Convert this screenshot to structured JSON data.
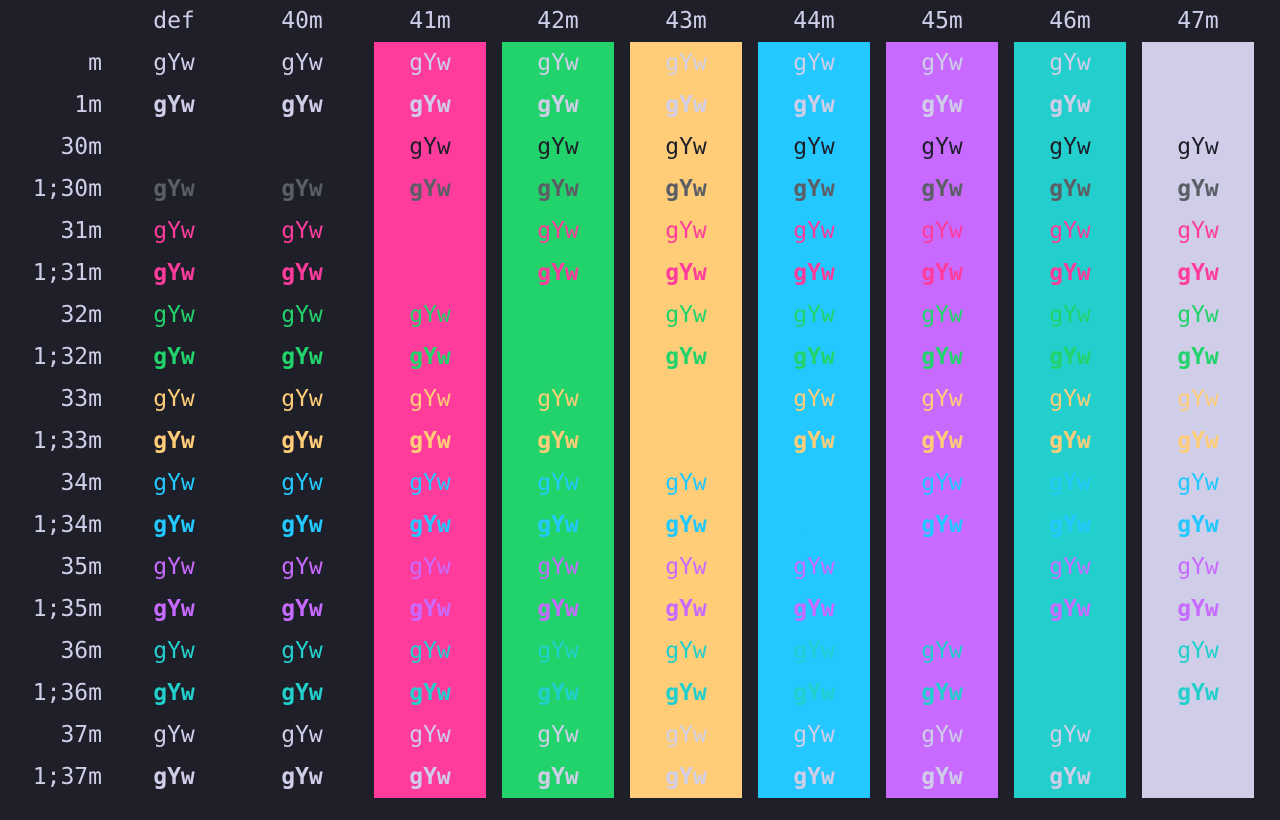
{
  "sample_text": "gYw",
  "colors": {
    "background": "#1e1f29",
    "foreground": "#cfcde8",
    "black": "#1e1f29",
    "bold_black": "#5c5e66",
    "red": "#ff3c9b",
    "green": "#22d36b",
    "yellow": "#ffcd78",
    "blue": "#22c8ff",
    "magenta": "#c86aff",
    "cyan": "#22cfcc",
    "white": "#cfcde8"
  },
  "columns": [
    {
      "label": "def",
      "bg": null
    },
    {
      "label": "40m",
      "bg": null
    },
    {
      "label": "41m",
      "bg": "red"
    },
    {
      "label": "42m",
      "bg": "green"
    },
    {
      "label": "43m",
      "bg": "yellow"
    },
    {
      "label": "44m",
      "bg": "blue"
    },
    {
      "label": "45m",
      "bg": "magenta"
    },
    {
      "label": "46m",
      "bg": "cyan"
    },
    {
      "label": "47m",
      "bg": "white"
    }
  ],
  "rows": [
    {
      "label": "m",
      "fg": "white",
      "bold": false,
      "default_row": true
    },
    {
      "label": "1m",
      "fg": "white",
      "bold": true,
      "default_row": true
    },
    {
      "label": "30m",
      "fg": "black",
      "bold": false
    },
    {
      "label": "1;30m",
      "fg": "bold_black",
      "bold": true
    },
    {
      "label": "31m",
      "fg": "red",
      "bold": false
    },
    {
      "label": "1;31m",
      "fg": "red",
      "bold": true
    },
    {
      "label": "32m",
      "fg": "green",
      "bold": false
    },
    {
      "label": "1;32m",
      "fg": "green",
      "bold": true
    },
    {
      "label": "33m",
      "fg": "yellow",
      "bold": false
    },
    {
      "label": "1;33m",
      "fg": "yellow",
      "bold": true
    },
    {
      "label": "34m",
      "fg": "blue",
      "bold": false
    },
    {
      "label": "1;34m",
      "fg": "blue",
      "bold": true
    },
    {
      "label": "35m",
      "fg": "magenta",
      "bold": false
    },
    {
      "label": "1;35m",
      "fg": "magenta",
      "bold": true
    },
    {
      "label": "36m",
      "fg": "cyan",
      "bold": false
    },
    {
      "label": "1;36m",
      "fg": "cyan",
      "bold": true
    },
    {
      "label": "37m",
      "fg": "white",
      "bold": false
    },
    {
      "label": "1;37m",
      "fg": "white",
      "bold": true
    }
  ]
}
